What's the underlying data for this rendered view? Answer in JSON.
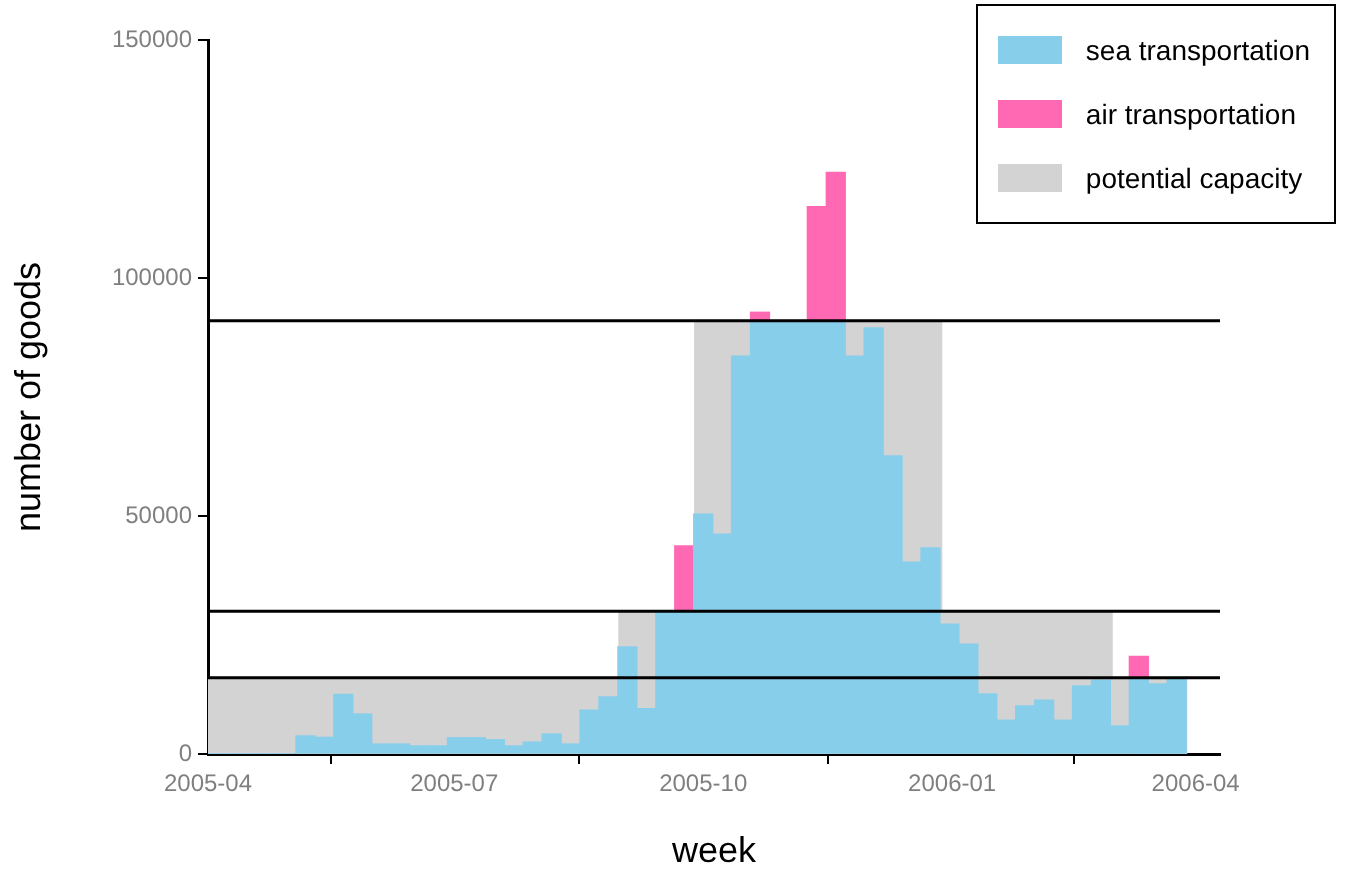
{
  "chart_data": {
    "type": "bar",
    "xlabel": "week",
    "ylabel": "number of goods",
    "x": [
      "2005-04-02",
      "2005-04-09",
      "2005-04-16",
      "2005-04-23",
      "2005-04-30",
      "2005-05-07",
      "2005-05-14",
      "2005-05-21",
      "2005-05-28",
      "2005-06-04",
      "2005-06-11",
      "2005-06-18",
      "2005-06-25",
      "2005-07-02",
      "2005-07-09",
      "2005-07-16",
      "2005-07-23",
      "2005-07-30",
      "2005-08-06",
      "2005-08-13",
      "2005-08-20",
      "2005-08-27",
      "2005-09-03",
      "2005-09-10",
      "2005-09-17",
      "2005-09-24",
      "2005-10-01",
      "2005-10-08",
      "2005-10-15",
      "2005-10-22",
      "2005-10-29",
      "2005-11-05",
      "2005-11-12",
      "2005-11-19",
      "2005-11-26",
      "2005-12-03",
      "2005-12-10",
      "2005-12-17",
      "2005-12-24",
      "2005-12-31",
      "2006-01-07",
      "2006-01-14",
      "2006-01-21",
      "2006-01-28",
      "2006-02-04",
      "2006-02-11",
      "2006-02-18",
      "2006-02-25",
      "2006-03-04",
      "2006-03-11",
      "2006-03-18",
      "2006-03-25"
    ],
    "stacked": true,
    "series": [
      {
        "name": "sea transportation",
        "color": "#87ceeb",
        "values": [
          0,
          0,
          0,
          0,
          0,
          3800,
          3500,
          12500,
          8400,
          2100,
          2100,
          1700,
          1700,
          3400,
          3400,
          3000,
          1700,
          2500,
          4200,
          2100,
          9200,
          12000,
          22500,
          9500,
          30000,
          30000,
          50400,
          46200,
          83600,
          91000,
          91000,
          91000,
          91000,
          91000,
          83600,
          89500,
          62600,
          40300,
          43300,
          27300,
          23100,
          12600,
          7100,
          10100,
          11300,
          7100,
          14300,
          15500,
          5900,
          16000,
          14700,
          16000
        ]
      },
      {
        "name": "air transportation",
        "color": "#ff69b4",
        "values": [
          null,
          null,
          null,
          null,
          null,
          null,
          null,
          null,
          null,
          null,
          null,
          null,
          null,
          null,
          null,
          null,
          null,
          null,
          null,
          null,
          null,
          null,
          null,
          null,
          null,
          13700,
          null,
          null,
          null,
          1800,
          null,
          null,
          24000,
          31200,
          null,
          null,
          null,
          null,
          null,
          null,
          null,
          null,
          null,
          null,
          null,
          null,
          null,
          null,
          null,
          4500,
          null,
          null
        ]
      },
      {
        "name": "potential capacity",
        "type": "area",
        "color": "#d3d3d3",
        "x": [
          "2005-04-01",
          "2005-08-31",
          "2005-08-31",
          "2005-09-28",
          "2005-09-28",
          "2005-12-28",
          "2005-12-28",
          "2006-03-01",
          "2006-03-01",
          "2006-03-29"
        ],
        "values": [
          16000,
          16000,
          30000,
          30000,
          91000,
          91000,
          30000,
          30000,
          16000,
          16000
        ]
      }
    ],
    "xlim": [
      "2005-04-01",
      "2006-04-10"
    ],
    "xticks": [
      "2005-04",
      "2005-07",
      "2005-10",
      "2006-01",
      "2006-04"
    ],
    "ylim": [
      0,
      150000
    ],
    "yticks": [
      0,
      50000,
      100000,
      150000
    ],
    "ref_lines": [
      {
        "axis": "y",
        "value": 16000
      },
      {
        "axis": "y",
        "value": 30000
      },
      {
        "axis": "y",
        "value": 91000
      }
    ],
    "legend": "top right"
  }
}
